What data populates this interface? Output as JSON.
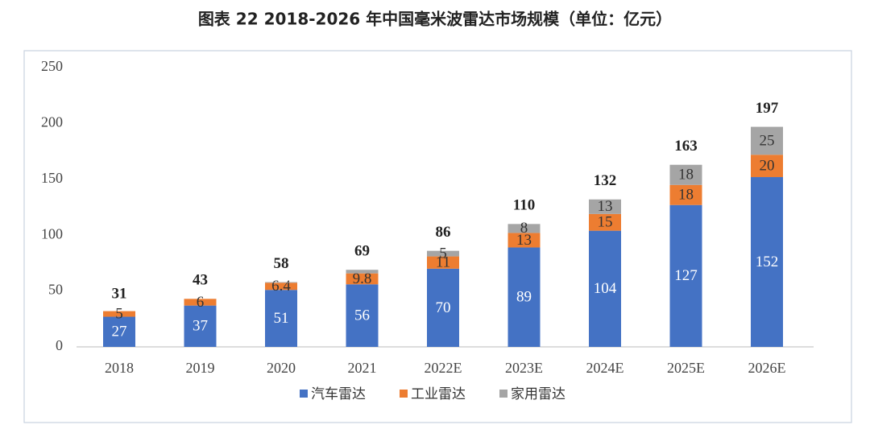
{
  "chart_data": {
    "type": "stacked_bar",
    "title": "图表 22  2018-2026 年中国毫米波雷达市场规模（单位：亿元）",
    "categories": [
      "2018",
      "2019",
      "2020",
      "2021",
      "2022E",
      "2023E",
      "2024E",
      "2025E",
      "2026E"
    ],
    "series": [
      {
        "name": "汽车雷达",
        "color": "#4472c4",
        "values": [
          27,
          37,
          51,
          56,
          70,
          89,
          104,
          127,
          152
        ]
      },
      {
        "name": "工业雷达",
        "color": "#ed7d31",
        "values": [
          5,
          6,
          6.4,
          9.8,
          11,
          13,
          15,
          18,
          20
        ]
      },
      {
        "name": "家用雷达",
        "color": "#a5a5a5",
        "values": [
          0,
          0,
          0.6,
          3.2,
          5,
          8,
          13,
          18,
          25
        ]
      }
    ],
    "totals": [
      31,
      43,
      58,
      69,
      86,
      110,
      132,
      163,
      197
    ],
    "ylim": [
      0,
      250
    ],
    "yticks": [
      0,
      50,
      100,
      150,
      200,
      250
    ],
    "grid": false,
    "legend": "bottom"
  }
}
